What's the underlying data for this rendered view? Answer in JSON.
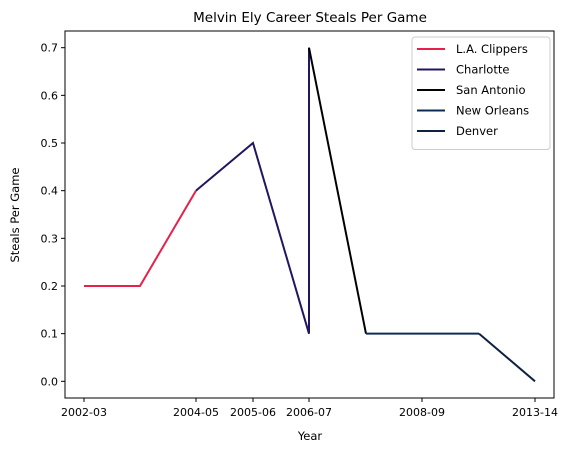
{
  "chart_data": {
    "type": "line",
    "title": "Melvin Ely Career Steals Per Game",
    "xlabel": "Year",
    "ylabel": "Steals Per Game",
    "x_tick_labels": [
      "2002-03",
      "2004-05",
      "2005-06",
      "2006-07",
      "2008-09",
      "2013-14"
    ],
    "ylim": [
      -0.035,
      0.735
    ],
    "yticks": [
      0.0,
      0.1,
      0.2,
      0.3,
      0.4,
      0.5,
      0.6,
      0.7
    ],
    "y_tick_labels": [
      "0.0",
      "0.1",
      "0.2",
      "0.3",
      "0.4",
      "0.5",
      "0.6",
      "0.7"
    ],
    "grid": false,
    "legend_position": "top-right",
    "series": [
      {
        "name": "L.A. Clippers",
        "color": "#e8204c",
        "x": [
          "2002-03",
          "2003-04",
          "2004-05"
        ],
        "values": [
          0.2,
          0.2,
          0.4
        ]
      },
      {
        "name": "Charlotte",
        "color": "#201760",
        "x": [
          "2004-05",
          "2005-06",
          "2006-07",
          "2006-07"
        ],
        "values": [
          0.4,
          0.5,
          0.1,
          0.7
        ]
      },
      {
        "name": "San Antonio",
        "color": "#000000",
        "x": [
          "2006-07",
          "2007-08"
        ],
        "values": [
          0.7,
          0.1
        ]
      },
      {
        "name": "New Orleans",
        "color": "#0c2c56",
        "x": [
          "2007-08",
          "2008-09",
          "2009-10"
        ],
        "values": [
          0.1,
          0.1,
          0.1
        ]
      },
      {
        "name": "Denver",
        "color": "#0e2240",
        "x": [
          "2009-10",
          "2013-14"
        ],
        "values": [
          0.1,
          0.0
        ]
      }
    ]
  }
}
